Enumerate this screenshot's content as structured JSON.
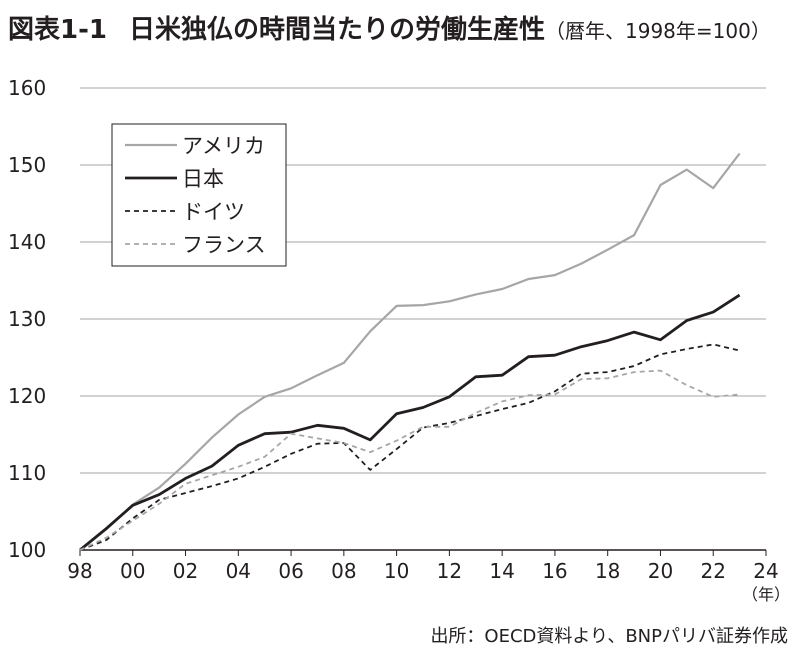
{
  "header": {
    "code": "図表1-1",
    "title": "日米独仏の時間当たりの労働生産性",
    "subtitle": "（暦年、1998年=100）"
  },
  "source": "出所：OECD資料より、BNPパリバ証券作成",
  "colors": {
    "usa": "#a6a6a6",
    "japan": "#231f20",
    "germany": "#231f20",
    "france": "#a6a6a6",
    "grid": "#a6a6a6"
  },
  "chart_data": {
    "type": "line",
    "x_unit_label": "（年）",
    "x": [
      1998,
      1999,
      2000,
      2001,
      2002,
      2003,
      2004,
      2005,
      2006,
      2007,
      2008,
      2009,
      2010,
      2011,
      2012,
      2013,
      2014,
      2015,
      2016,
      2017,
      2018,
      2019,
      2020,
      2021,
      2022,
      2023
    ],
    "x_tick_labels": [
      "98",
      "00",
      "02",
      "04",
      "06",
      "08",
      "10",
      "12",
      "14",
      "16",
      "18",
      "20",
      "22",
      "24"
    ],
    "x_tick_values": [
      1998,
      2000,
      2002,
      2004,
      2006,
      2008,
      2010,
      2012,
      2014,
      2016,
      2018,
      2020,
      2022,
      2024
    ],
    "xlim": [
      1998,
      2024
    ],
    "ylim": [
      100,
      160
    ],
    "y_ticks": [
      "100",
      "110",
      "120",
      "130",
      "140",
      "150",
      "160"
    ],
    "grid": "horizontal",
    "legend_position": "top-left",
    "series": [
      {
        "name": "アメリカ",
        "style": "solid",
        "color_key": "usa",
        "values": [
          100,
          102.7,
          105.9,
          108.1,
          111.2,
          114.6,
          117.6,
          119.9,
          121.0,
          122.7,
          124.3,
          128.4,
          131.7,
          131.8,
          132.3,
          133.2,
          133.9,
          135.2,
          135.7,
          137.2,
          139.0,
          140.9,
          147.4,
          149.4,
          147.0,
          151.5
        ]
      },
      {
        "name": "日本",
        "style": "solid",
        "color_key": "japan",
        "values": [
          100,
          102.8,
          105.8,
          107.2,
          109.3,
          110.9,
          113.6,
          115.1,
          115.3,
          116.2,
          115.8,
          114.3,
          117.7,
          118.5,
          119.9,
          122.5,
          122.7,
          125.1,
          125.3,
          126.4,
          127.2,
          128.3,
          127.3,
          129.8,
          130.9,
          133.1
        ]
      },
      {
        "name": "ドイツ",
        "style": "dashed",
        "color_key": "germany",
        "values": [
          100,
          101.3,
          104.1,
          106.5,
          107.4,
          108.3,
          109.3,
          110.8,
          112.5,
          113.8,
          113.9,
          110.4,
          113.1,
          115.9,
          116.5,
          117.4,
          118.3,
          119.1,
          120.6,
          122.9,
          123.1,
          123.9,
          125.4,
          126.1,
          126.7,
          125.9
        ]
      },
      {
        "name": "フランス",
        "style": "dashed",
        "color_key": "france",
        "values": [
          100,
          101.6,
          103.8,
          106.0,
          108.6,
          109.7,
          110.8,
          112.1,
          115.1,
          114.5,
          113.9,
          112.7,
          114.2,
          116.0,
          116.0,
          117.8,
          119.3,
          120.1,
          120.2,
          122.2,
          122.3,
          123.1,
          123.3,
          121.4,
          119.9,
          120.2
        ]
      }
    ]
  }
}
